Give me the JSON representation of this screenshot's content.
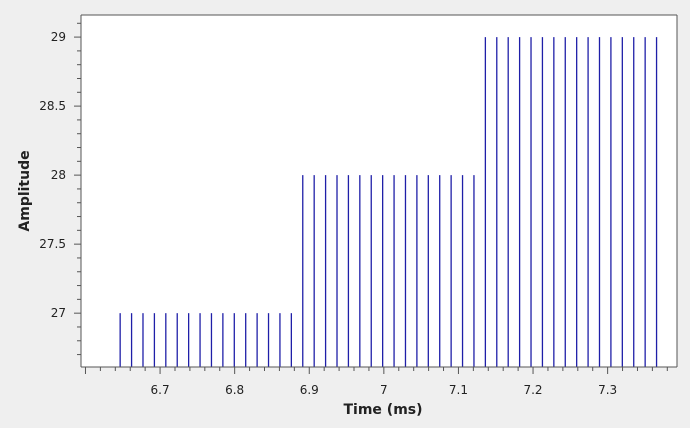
{
  "chart_data": {
    "type": "stem",
    "xlabel": "Time (ms)",
    "ylabel": "Amplitude",
    "xlim": [
      6.594,
      7.393
    ],
    "ylim": [
      26.61,
      29.16
    ],
    "xticks": [
      6.7,
      6.8,
      6.9,
      7,
      7.1,
      7.2,
      7.3
    ],
    "yticks": [
      27,
      27.5,
      28,
      28.5,
      29
    ],
    "grid": false,
    "legend": "none",
    "stem_color": "#1f1fa8",
    "baseline": 26.61,
    "series": [
      {
        "x": [
          6.6465,
          6.6618,
          6.6771,
          6.6924,
          6.7077,
          6.723,
          6.7383,
          6.7536,
          6.7689,
          6.7842,
          6.7995,
          6.8148,
          6.8301,
          6.8454,
          6.8607,
          6.876,
          6.8913,
          6.9066,
          6.9219,
          6.9372,
          6.9525,
          6.9678,
          6.9831,
          6.9984,
          7.0137,
          7.029,
          7.0443,
          7.0596,
          7.0749,
          7.0902,
          7.1055,
          7.1208,
          7.1361,
          7.1514,
          7.1667,
          7.182,
          7.1973,
          7.2126,
          7.2279,
          7.2432,
          7.2585,
          7.2738,
          7.2891,
          7.3044,
          7.3197,
          7.335,
          7.3503,
          7.3656
        ],
        "y": [
          27,
          27,
          27,
          27,
          27,
          27,
          27,
          27,
          27,
          27,
          27,
          27,
          27,
          27,
          27,
          27,
          28,
          28,
          28,
          28,
          28,
          28,
          28,
          28,
          28,
          28,
          28,
          28,
          28,
          28,
          28,
          28,
          29,
          29,
          29,
          29,
          29,
          29,
          29,
          29,
          29,
          29,
          29,
          29,
          29,
          29,
          29,
          29
        ]
      }
    ]
  },
  "colors": {
    "background": "#efefef",
    "plot_area": "#ffffff",
    "axis": "#555555",
    "text": "#222222"
  }
}
